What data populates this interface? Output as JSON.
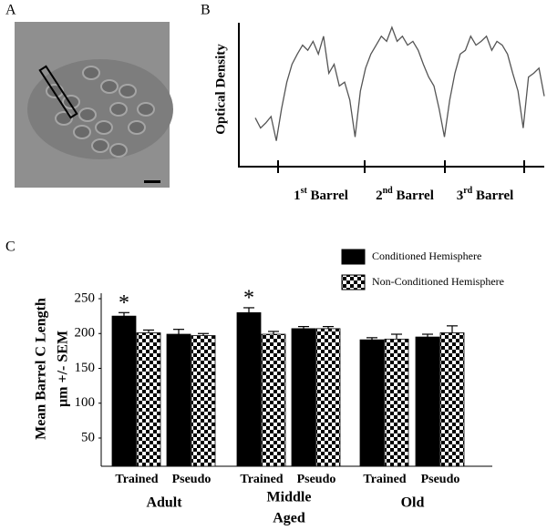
{
  "panel_labels": [
    "A",
    "B",
    "C"
  ],
  "chart_data": [
    {
      "type": "line",
      "ylabel": "Optical Density",
      "barrel_labels": [
        {
          "num": "1",
          "sup": "st",
          "text": " Barrel"
        },
        {
          "num": "2",
          "sup": "nd",
          "text": " Barrel"
        },
        {
          "num": "3",
          "sup": "rd",
          "text": " Barrel"
        }
      ],
      "ylim": [
        0,
        100
      ],
      "color": "#555555",
      "values": [
        29,
        21,
        25,
        30,
        11,
        36,
        57,
        71,
        79,
        86,
        82,
        89,
        79,
        93,
        64,
        71,
        54,
        57,
        43,
        14,
        50,
        68,
        79,
        86,
        93,
        89,
        100,
        89,
        93,
        86,
        89,
        82,
        71,
        61,
        54,
        36,
        14,
        43,
        64,
        79,
        82,
        93,
        86,
        89,
        93,
        82,
        89,
        86,
        79,
        64,
        50,
        21,
        61,
        64,
        68,
        46
      ]
    },
    {
      "type": "bar",
      "ylabel": [
        "Mean Barrel C Length",
        "µm +/- SEM"
      ],
      "categories": [
        "Trained",
        "Pseudo",
        "Trained",
        "Pseudo",
        "Trained",
        "Pseudo"
      ],
      "groups": [
        [
          "Adult"
        ],
        [
          "Middle",
          "Aged"
        ],
        [
          "Old"
        ]
      ],
      "ylim": [
        10,
        250
      ],
      "yticks": [
        50,
        100,
        150,
        200,
        250
      ],
      "series": [
        {
          "name": "Conditioned Hemisphere",
          "color": "#000000",
          "values": [
            225,
            199,
            230,
            207,
            191,
            195
          ],
          "errors": [
            5,
            7,
            7,
            3,
            3,
            4
          ],
          "significance": [
            "*",
            null,
            "*",
            null,
            null,
            null
          ]
        },
        {
          "name": "Non-Conditioned Hemisphere",
          "color": "checker",
          "values": [
            201,
            197,
            199,
            207,
            192,
            201
          ],
          "errors": [
            4,
            3,
            4,
            3,
            7,
            10
          ]
        }
      ]
    }
  ]
}
